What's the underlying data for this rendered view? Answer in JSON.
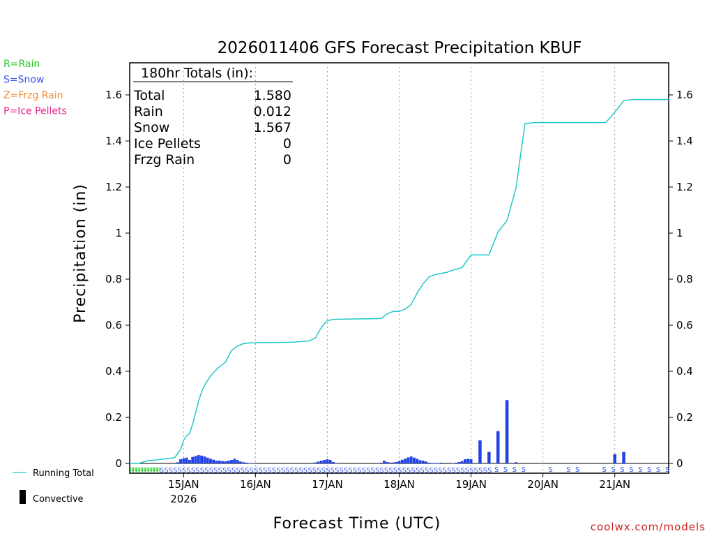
{
  "chart_data": {
    "type": "bar+line",
    "title": "2026011406 GFS Forecast Precipitation KBUF",
    "ylabel": "Precipitation (in)",
    "xlabel": "Forecast Time (UTC)",
    "ylim": [
      -0.04,
      1.75
    ],
    "yticks": [
      0,
      0.2,
      0.4,
      0.6,
      0.8,
      1,
      1.2,
      1.4,
      1.6
    ],
    "ytick_labels": [
      "0",
      "0.2",
      "0.4",
      "0.6",
      "0.8",
      "1",
      "1.2",
      "1.4",
      "1.6"
    ],
    "x_hours_range": [
      0,
      180
    ],
    "x_ticks": [
      {
        "hour": 18,
        "label": "15JAN",
        "sublabel": "2026"
      },
      {
        "hour": 42,
        "label": "16JAN",
        "sublabel": ""
      },
      {
        "hour": 66,
        "label": "17JAN",
        "sublabel": ""
      },
      {
        "hour": 90,
        "label": "18JAN",
        "sublabel": ""
      },
      {
        "hour": 114,
        "label": "19JAN",
        "sublabel": ""
      },
      {
        "hour": 138,
        "label": "20JAN",
        "sublabel": ""
      },
      {
        "hour": 162,
        "label": "21JAN",
        "sublabel": ""
      }
    ],
    "running_total": {
      "name": "Running Total",
      "color": "#20c8c8",
      "hours": [
        0,
        3,
        6,
        9,
        12,
        15,
        17,
        18,
        19,
        20,
        21,
        22,
        23,
        24,
        25,
        26,
        27,
        28,
        30,
        32,
        34,
        36,
        38,
        40,
        42,
        44,
        48,
        54,
        58,
        60,
        62,
        64,
        66,
        68,
        70,
        74,
        80,
        84,
        86,
        88,
        90,
        92,
        94,
        96,
        98,
        100,
        102,
        104,
        106,
        108,
        111,
        114,
        117,
        120,
        123,
        126,
        129,
        132,
        135,
        138,
        141,
        144,
        147,
        150,
        153,
        156,
        159,
        162,
        165,
        168,
        171,
        174,
        177,
        180
      ],
      "values": [
        0,
        0,
        0.012,
        0.015,
        0.02,
        0.025,
        0.06,
        0.1,
        0.12,
        0.13,
        0.17,
        0.22,
        0.27,
        0.31,
        0.34,
        0.36,
        0.38,
        0.395,
        0.42,
        0.44,
        0.49,
        0.51,
        0.52,
        0.523,
        0.524,
        0.525,
        0.525,
        0.526,
        0.53,
        0.532,
        0.545,
        0.59,
        0.62,
        0.625,
        0.626,
        0.627,
        0.628,
        0.629,
        0.65,
        0.66,
        0.66,
        0.67,
        0.69,
        0.74,
        0.78,
        0.81,
        0.82,
        0.825,
        0.83,
        0.84,
        0.85,
        0.905,
        0.905,
        0.905,
        1.005,
        1.055,
        1.195,
        1.475,
        1.48,
        1.48,
        1.48,
        1.48,
        1.48,
        1.48,
        1.48,
        1.48,
        1.48,
        1.525,
        1.575,
        1.58,
        1.58,
        1.58,
        1.58,
        1.58
      ]
    },
    "bars": {
      "name": "Precipitation",
      "color": "#2040e8",
      "hours": [
        16,
        17,
        18,
        19,
        20,
        21,
        22,
        23,
        24,
        25,
        26,
        27,
        28,
        29,
        30,
        31,
        32,
        33,
        34,
        35,
        36,
        37,
        38,
        39,
        40,
        41,
        62,
        63,
        64,
        65,
        66,
        67,
        68,
        69,
        84,
        85,
        86,
        87,
        88,
        89,
        90,
        91,
        92,
        93,
        94,
        95,
        96,
        97,
        98,
        99,
        100,
        101,
        102,
        103,
        104,
        108,
        109,
        110,
        111,
        112,
        113,
        114,
        117,
        120,
        123,
        126,
        129,
        162,
        165
      ],
      "values": [
        0.005,
        0.018,
        0.022,
        0.025,
        0.015,
        0.028,
        0.032,
        0.036,
        0.034,
        0.03,
        0.025,
        0.02,
        0.016,
        0.012,
        0.012,
        0.01,
        0.009,
        0.012,
        0.015,
        0.02,
        0.015,
        0.008,
        0.005,
        0.003,
        0.002,
        0.002,
        0.004,
        0.008,
        0.012,
        0.015,
        0.018,
        0.015,
        0.006,
        0.002,
        0.003,
        0.012,
        0.006,
        0.004,
        0.004,
        0.006,
        0.01,
        0.016,
        0.02,
        0.026,
        0.03,
        0.025,
        0.02,
        0.014,
        0.012,
        0.008,
        0.003,
        0.002,
        0.002,
        0.002,
        0.003,
        0.002,
        0.003,
        0.006,
        0.01,
        0.018,
        0.02,
        0.018,
        0.1,
        0.05,
        0.14,
        0.275,
        0.005,
        0.04,
        0.05
      ]
    },
    "ptype_strip": {
      "rain_symbol": "R",
      "snow_symbol": "S",
      "rain_hours": [
        0,
        1,
        2,
        3,
        4,
        5,
        6,
        7,
        8,
        9
      ],
      "snow_dense_range": [
        10,
        120
      ],
      "snow_sparse_hours": [
        123,
        126,
        129,
        132,
        141,
        147,
        150,
        159,
        162,
        165,
        168,
        171,
        174,
        177,
        180
      ]
    },
    "totals_box": {
      "header": "180hr Totals (in):",
      "rows": [
        {
          "label": "Total",
          "value": "1.580"
        },
        {
          "label": "Rain",
          "value": "0.012"
        },
        {
          "label": "Snow",
          "value": "1.567"
        },
        {
          "label": "Ice Pellets",
          "value": "0"
        },
        {
          "label": "Frzg Rain",
          "value": "0"
        }
      ]
    },
    "ptype_legend": [
      {
        "text": "R=Rain",
        "color": "#22cc22"
      },
      {
        "text": "S=Snow",
        "color": "#3355ee"
      },
      {
        "text": "Z=Frzg Rain",
        "color": "#f08a30"
      },
      {
        "text": "P=Ice Pellets",
        "color": "#e8238a"
      }
    ],
    "series_legend": {
      "running_total": "Running Total",
      "convective": "Convective"
    },
    "credit": "coolwx.com/models"
  }
}
